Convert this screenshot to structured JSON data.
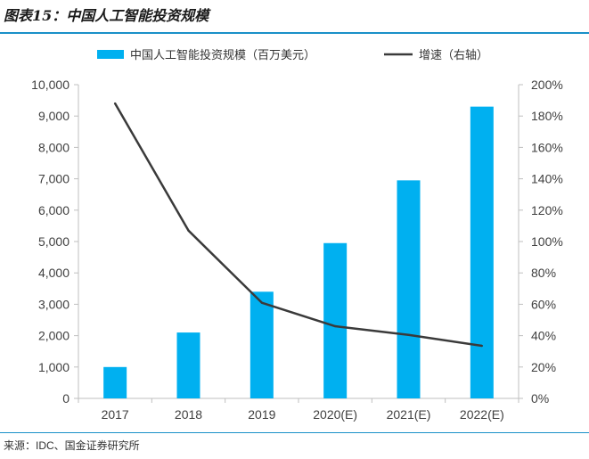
{
  "figure_title": "图表15：中国人工智能投资规模",
  "source": "来源：IDC、国金证券研究所",
  "colors": {
    "bar": "#00b0f0",
    "line": "#3a3a3a",
    "rule": "#1a90c8"
  },
  "chart_data": {
    "type": "bar",
    "categories": [
      "2017",
      "2018",
      "2019",
      "2020(E)",
      "2021(E)",
      "2022(E)"
    ],
    "series": [
      {
        "name": "中国人工智能投资规模（百万美元）",
        "type": "bar",
        "axis": "left",
        "values": [
          1000,
          2100,
          3400,
          4950,
          6950,
          9300
        ]
      },
      {
        "name": "增速（右轴）",
        "type": "line",
        "axis": "right",
        "values": [
          188,
          107,
          61,
          46,
          40.5,
          33.5
        ]
      }
    ],
    "y_left": {
      "lim": [
        0,
        10000
      ],
      "ticks": [
        "0",
        "1,000",
        "2,000",
        "3,000",
        "4,000",
        "5,000",
        "6,000",
        "7,000",
        "8,000",
        "9,000",
        "10,000"
      ]
    },
    "y_right": {
      "lim": [
        0,
        200
      ],
      "ticks": [
        "0%",
        "20%",
        "40%",
        "60%",
        "80%",
        "100%",
        "120%",
        "140%",
        "160%",
        "180%",
        "200%"
      ]
    },
    "legend_position": "top",
    "grid": false
  }
}
